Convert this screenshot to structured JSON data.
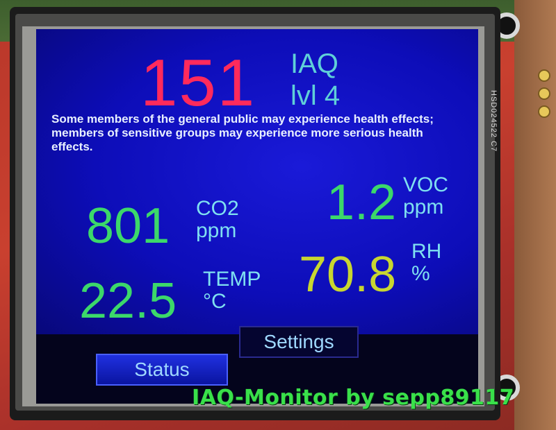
{
  "iaq": {
    "value": "151",
    "label": "IAQ",
    "level": "lvl 4",
    "description": "Some members of the general public may experience health effects; members of sensitive groups may experience more serious health effects."
  },
  "readings": {
    "co2": {
      "value": "801",
      "name": "CO2",
      "unit": "ppm"
    },
    "voc": {
      "value": "1.2",
      "name": "VOC",
      "unit": "ppm"
    },
    "temp": {
      "value": "22.5",
      "name": "TEMP",
      "unit": "°C"
    },
    "rh": {
      "value": "70.8",
      "name": "RH",
      "unit": "%"
    }
  },
  "buttons": {
    "status": "Status",
    "settings": "Settings"
  },
  "watermark": "IAQ-Monitor by sepp89117",
  "module_label": "HSD024522 C7",
  "colors": {
    "iaq_value": "#ff2a5c",
    "label": "#5fd0d8",
    "green_value": "#3cd86a",
    "rh_value": "#c8d630",
    "screen_bg": "#0d0db8",
    "watermark": "#39e04a"
  }
}
